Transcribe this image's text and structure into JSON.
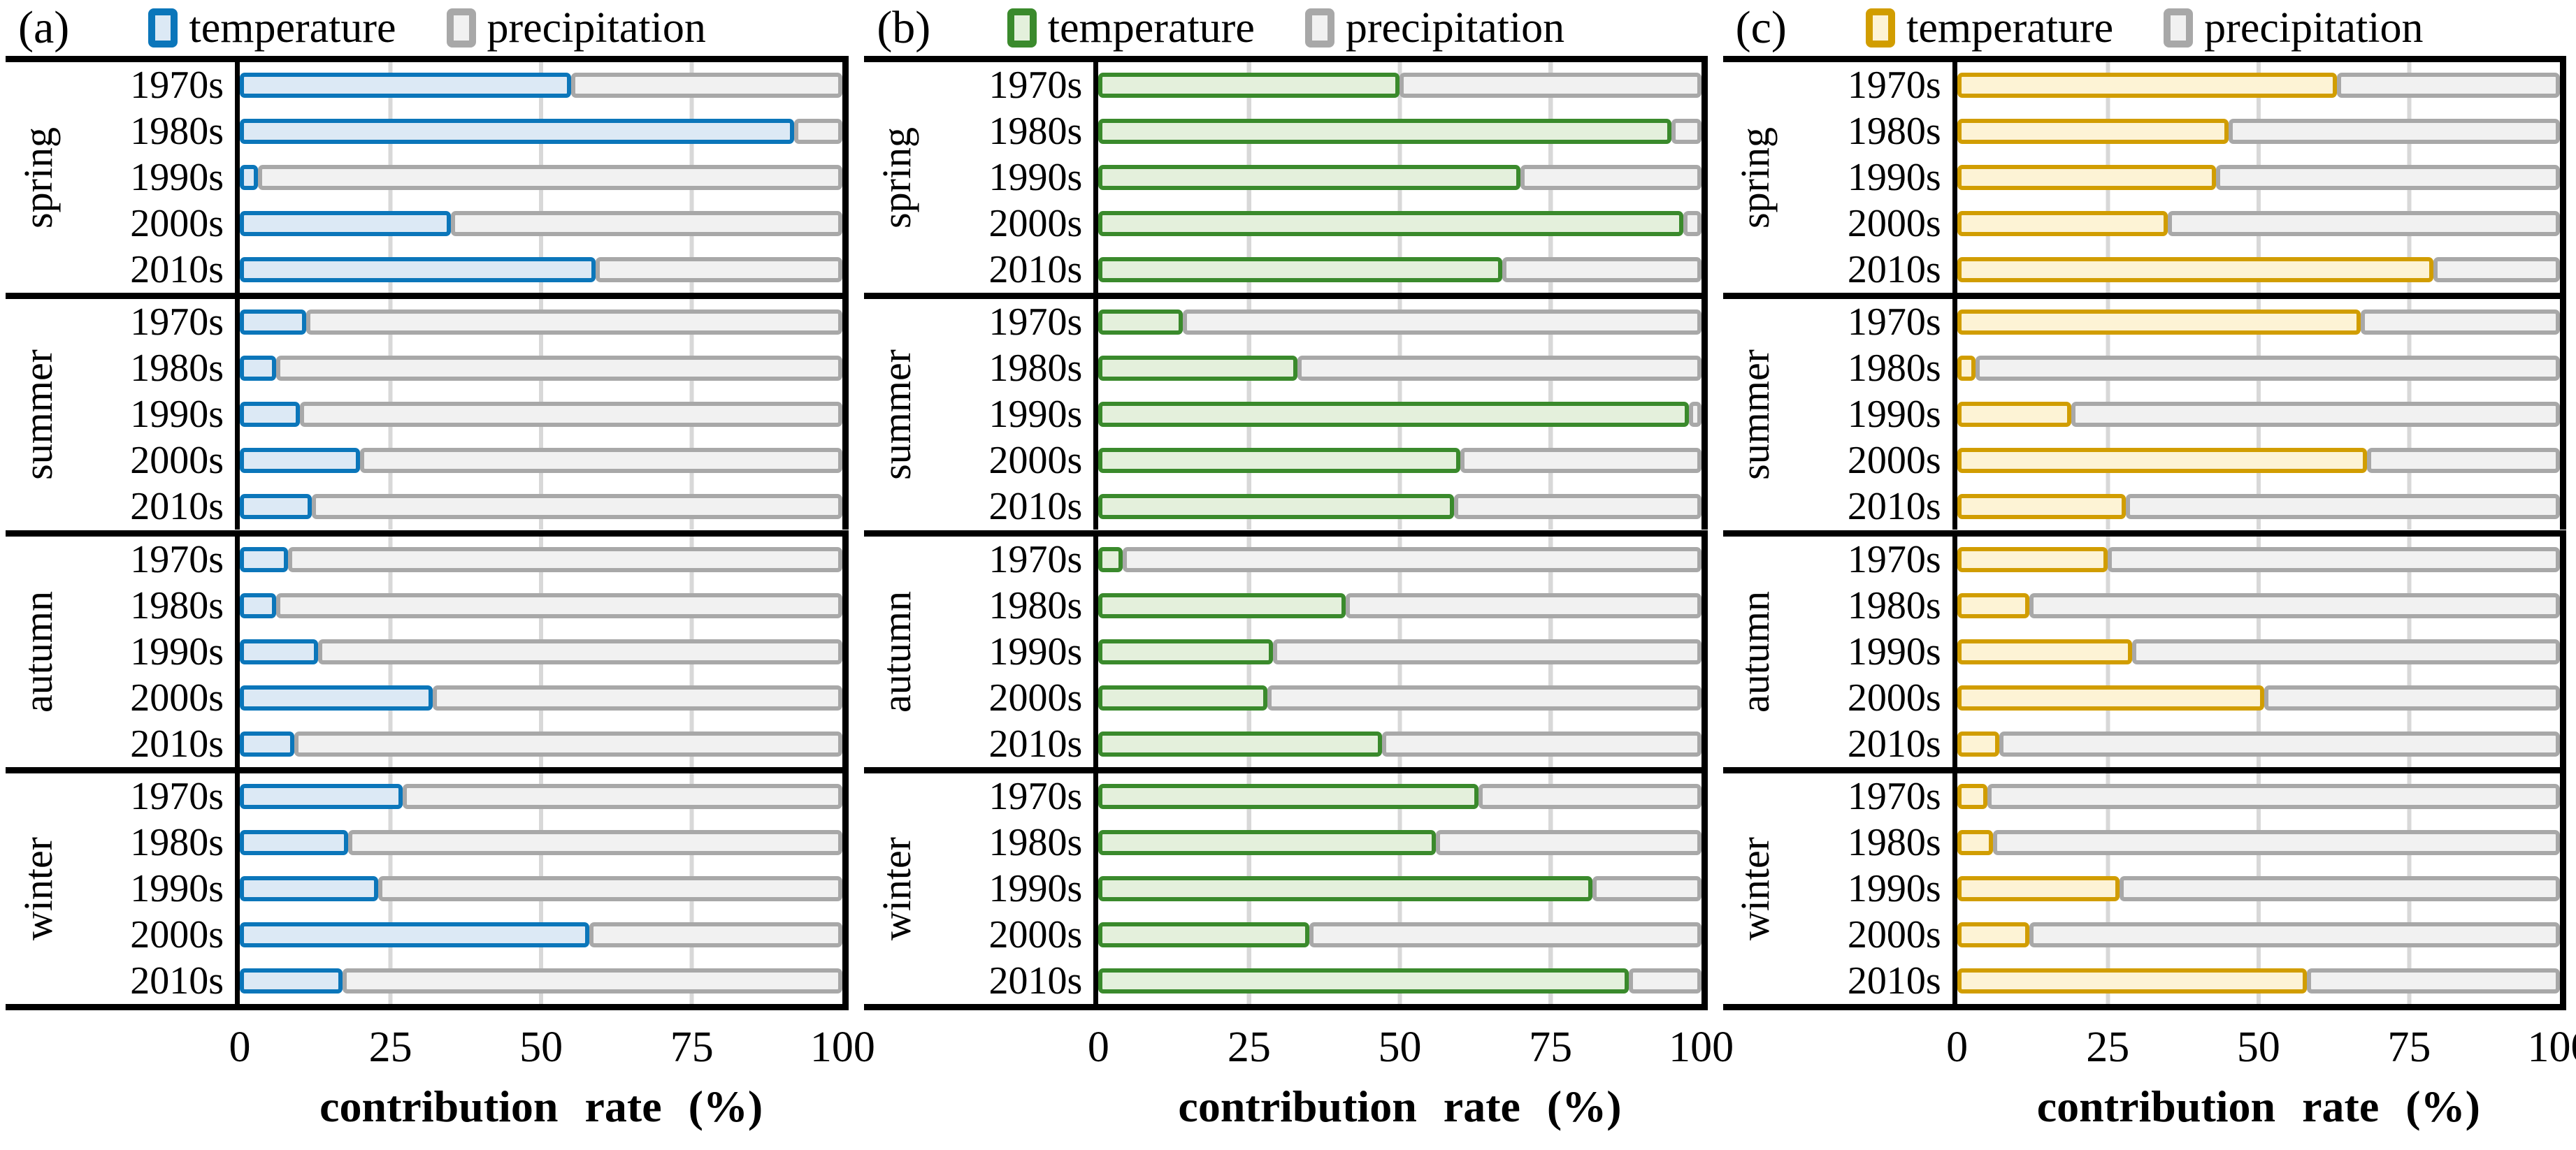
{
  "figure": {
    "panels": [
      "(a)",
      "(b)",
      "(c)"
    ],
    "legend": {
      "temperature": "temperature",
      "precipitation": "precipitation"
    },
    "seasons": [
      "spring",
      "summer",
      "autumn",
      "winter"
    ],
    "decades": [
      "1970s",
      "1980s",
      "1990s",
      "2000s",
      "2010s"
    ],
    "axis": {
      "title": "contribution rate (%)",
      "ticks": [
        "0",
        "25",
        "50",
        "75",
        "100"
      ],
      "tick_values": [
        0,
        25,
        50,
        75,
        100
      ],
      "xlim": [
        0,
        100
      ],
      "gridlines": [
        25,
        50,
        75
      ]
    }
  },
  "chart_data": [
    {
      "type": "bar",
      "panel": "(a)",
      "orientation": "horizontal",
      "stacked": true,
      "legend_position": "top",
      "xlabel": "contribution rate (%)",
      "xlim": [
        0,
        100
      ],
      "colors": {
        "temperature_border": "#0b76ba",
        "temperature_fill": "#dcE9f5",
        "precipitation_border": "#a8a8a8",
        "precipitation_fill": "#f1f1f1"
      },
      "groups": [
        {
          "season": "spring",
          "categories": [
            "1970s",
            "1980s",
            "1990s",
            "2000s",
            "2010s"
          ],
          "series": [
            {
              "name": "temperature",
              "values": [
                55,
                92,
                3,
                35,
                59
              ]
            },
            {
              "name": "precipitation",
              "values": [
                45,
                8,
                97,
                65,
                41
              ]
            }
          ]
        },
        {
          "season": "summer",
          "categories": [
            "1970s",
            "1980s",
            "1990s",
            "2000s",
            "2010s"
          ],
          "series": [
            {
              "name": "temperature",
              "values": [
                11,
                6,
                10,
                20,
                12
              ]
            },
            {
              "name": "precipitation",
              "values": [
                89,
                94,
                90,
                80,
                88
              ]
            }
          ]
        },
        {
          "season": "autumn",
          "categories": [
            "1970s",
            "1980s",
            "1990s",
            "2000s",
            "2010s"
          ],
          "series": [
            {
              "name": "temperature",
              "values": [
                8,
                6,
                13,
                32,
                9
              ]
            },
            {
              "name": "precipitation",
              "values": [
                92,
                94,
                87,
                68,
                91
              ]
            }
          ]
        },
        {
          "season": "winter",
          "categories": [
            "1970s",
            "1980s",
            "1990s",
            "2000s",
            "2010s"
          ],
          "series": [
            {
              "name": "temperature",
              "values": [
                27,
                18,
                23,
                58,
                17
              ]
            },
            {
              "name": "precipitation",
              "values": [
                73,
                82,
                77,
                42,
                83
              ]
            }
          ]
        }
      ]
    },
    {
      "type": "bar",
      "panel": "(b)",
      "orientation": "horizontal",
      "stacked": true,
      "legend_position": "top",
      "xlabel": "contribution rate (%)",
      "xlim": [
        0,
        100
      ],
      "colors": {
        "temperature_border": "#3a8a2c",
        "temperature_fill": "#e4f0dc",
        "precipitation_border": "#a8a8a8",
        "precipitation_fill": "#f1f1f1"
      },
      "groups": [
        {
          "season": "spring",
          "categories": [
            "1970s",
            "1980s",
            "1990s",
            "2000s",
            "2010s"
          ],
          "series": [
            {
              "name": "temperature",
              "values": [
                50,
                95,
                70,
                97,
                67
              ]
            },
            {
              "name": "precipitation",
              "values": [
                50,
                5,
                30,
                3,
                33
              ]
            }
          ]
        },
        {
          "season": "summer",
          "categories": [
            "1970s",
            "1980s",
            "1990s",
            "2000s",
            "2010s"
          ],
          "series": [
            {
              "name": "temperature",
              "values": [
                14,
                33,
                98,
                60,
                59
              ]
            },
            {
              "name": "precipitation",
              "values": [
                86,
                67,
                2,
                40,
                41
              ]
            }
          ]
        },
        {
          "season": "autumn",
          "categories": [
            "1970s",
            "1980s",
            "1990s",
            "2000s",
            "2010s"
          ],
          "series": [
            {
              "name": "temperature",
              "values": [
                4,
                41,
                29,
                28,
                47
              ]
            },
            {
              "name": "precipitation",
              "values": [
                96,
                59,
                71,
                72,
                53
              ]
            }
          ]
        },
        {
          "season": "winter",
          "categories": [
            "1970s",
            "1980s",
            "1990s",
            "2000s",
            "2010s"
          ],
          "series": [
            {
              "name": "temperature",
              "values": [
                63,
                56,
                82,
                35,
                88
              ]
            },
            {
              "name": "precipitation",
              "values": [
                37,
                44,
                18,
                65,
                12
              ]
            }
          ]
        }
      ]
    },
    {
      "type": "bar",
      "panel": "(c)",
      "orientation": "horizontal",
      "stacked": true,
      "legend_position": "top",
      "xlabel": "contribution rate (%)",
      "xlim": [
        0,
        100
      ],
      "colors": {
        "temperature_border": "#d19d00",
        "temperature_fill": "#fdf3d5",
        "precipitation_border": "#a8a8a8",
        "precipitation_fill": "#f1f1f1"
      },
      "groups": [
        {
          "season": "spring",
          "categories": [
            "1970s",
            "1980s",
            "1990s",
            "2000s",
            "2010s"
          ],
          "series": [
            {
              "name": "temperature",
              "values": [
                63,
                45,
                43,
                35,
                79
              ]
            },
            {
              "name": "precipitation",
              "values": [
                37,
                55,
                57,
                65,
                21
              ]
            }
          ]
        },
        {
          "season": "summer",
          "categories": [
            "1970s",
            "1980s",
            "1990s",
            "2000s",
            "2010s"
          ],
          "series": [
            {
              "name": "temperature",
              "values": [
                67,
                3,
                19,
                68,
                28
              ]
            },
            {
              "name": "precipitation",
              "values": [
                33,
                97,
                81,
                32,
                72
              ]
            }
          ]
        },
        {
          "season": "autumn",
          "categories": [
            "1970s",
            "1980s",
            "1990s",
            "2000s",
            "2010s"
          ],
          "series": [
            {
              "name": "temperature",
              "values": [
                25,
                12,
                29,
                51,
                7
              ]
            },
            {
              "name": "precipitation",
              "values": [
                75,
                88,
                71,
                49,
                93
              ]
            }
          ]
        },
        {
          "season": "winter",
          "categories": [
            "1970s",
            "1980s",
            "1990s",
            "2000s",
            "2010s"
          ],
          "series": [
            {
              "name": "temperature",
              "values": [
                5,
                6,
                27,
                12,
                58
              ]
            },
            {
              "name": "precipitation",
              "values": [
                95,
                94,
                73,
                88,
                42
              ]
            }
          ]
        }
      ]
    }
  ]
}
